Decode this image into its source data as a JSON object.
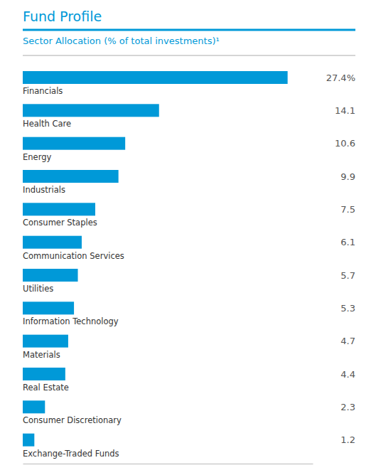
{
  "chart_data": {
    "type": "bar",
    "orientation": "horizontal",
    "title": "Fund Profile",
    "subtitle": "Sector Allocation (% of total investments)¹",
    "categories": [
      "Financials",
      "Health Care",
      "Energy",
      "Industrials",
      "Consumer Staples",
      "Communication Services",
      "Utilities",
      "Information Technology",
      "Materials",
      "Real Estate",
      "Consumer Discretionary",
      "Exchange-Traded Funds"
    ],
    "values": [
      27.4,
      14.1,
      10.6,
      9.9,
      7.5,
      6.1,
      5.7,
      5.3,
      4.7,
      4.4,
      2.3,
      1.2
    ],
    "value_labels": [
      "27.4%",
      "14.1",
      "10.6",
      "9.9",
      "7.5",
      "6.1",
      "5.7",
      "5.3",
      "4.7",
      "4.4",
      "2.3",
      "1.2"
    ],
    "data_labels": true,
    "color": "#0099d8",
    "xlim": [
      0,
      30
    ],
    "tick_labels": false,
    "grid": false
  }
}
